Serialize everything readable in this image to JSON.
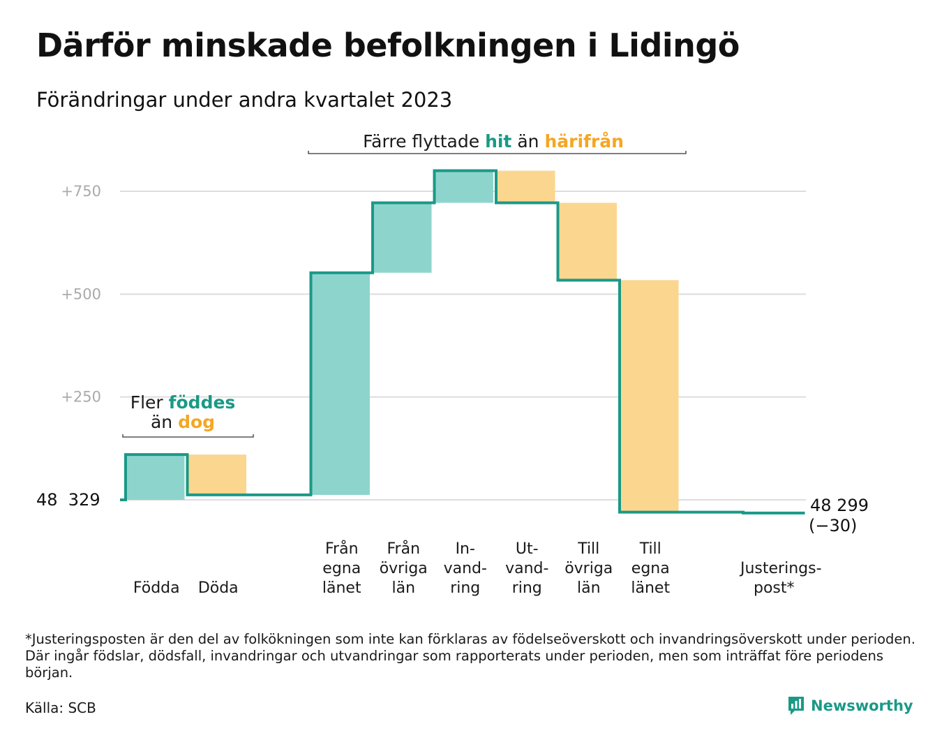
{
  "title": "Därför minskade befolkningen i Lidingö",
  "subtitle": "Förändringar under andra kvartalet 2023",
  "chart_data": {
    "type": "waterfall",
    "start_value_label": "48  329",
    "end_value_label": "48 299",
    "end_change_label": "(−30)",
    "y_ticks": [
      "+750",
      "+500",
      "+250"
    ],
    "y_tick_values": [
      750,
      500,
      250
    ],
    "ylim": [
      -40,
      800
    ],
    "grid": true,
    "steps": [
      {
        "label_lines": [
          "Födda"
        ],
        "value": 110
      },
      {
        "label_lines": [
          "Döda"
        ],
        "value": -98
      },
      {
        "label_lines": [],
        "value": 0
      },
      {
        "label_lines": [
          "Från",
          "egna",
          "länet"
        ],
        "value": 540
      },
      {
        "label_lines": [
          "Från",
          "övriga",
          "län"
        ],
        "value": 170
      },
      {
        "label_lines": [
          "In-",
          "vand-",
          "ring"
        ],
        "value": 78
      },
      {
        "label_lines": [
          "Ut-",
          "vand-",
          "ring"
        ],
        "value": -78
      },
      {
        "label_lines": [
          "Till",
          "övriga",
          "län"
        ],
        "value": -188
      },
      {
        "label_lines": [
          "Till",
          "egna",
          "länet"
        ],
        "value": -564
      },
      {
        "label_lines": [],
        "value": 0
      },
      {
        "label_lines": [
          "Justerings-",
          "post*"
        ],
        "value": -2
      }
    ],
    "annotations": [
      {
        "lines": [
          [
            {
              "text": "Fler ",
              "style": "plain"
            },
            {
              "text": "föddes",
              "style": "pos"
            }
          ],
          [
            {
              "text": "än ",
              "style": "plain"
            },
            {
              "text": "dog",
              "style": "neg"
            }
          ]
        ]
      },
      {
        "lines": [
          [
            {
              "text": "Färre flyttade ",
              "style": "plain"
            },
            {
              "text": "hit",
              "style": "pos"
            },
            {
              "text": " än ",
              "style": "plain"
            },
            {
              "text": "härifrån",
              "style": "neg"
            }
          ]
        ]
      }
    ],
    "colors": {
      "increase": "#8dd5cc",
      "decrease": "#fbd68f",
      "line": "#1a9987",
      "grid": "#dddddd",
      "pos_text": "#1a9987",
      "neg_text": "#f5a623"
    }
  },
  "footnote": "*Justeringsposten är den del av folkökningen som inte kan förklaras av födelseöverskott och invandringsöverskott under perioden. Där ingår födslar, dödsfall, invandringar och utvandringar som rapporterats under perioden, men som inträffat före periodens början.",
  "source": "Källa: SCB",
  "brand": "Newsworthy",
  "brand_icon": "bar-chart-speech-bubble-icon"
}
